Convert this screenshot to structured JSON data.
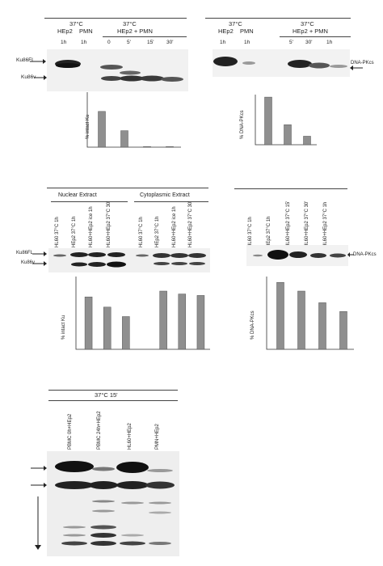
{
  "panelA": {
    "temp": "37°C",
    "cell_hep2": "HEp2",
    "cell_pmn": "PMN",
    "group": "HEp2 + PMN",
    "lanes": [
      "1h",
      "1h",
      "0",
      "5'",
      "15'",
      "30'"
    ],
    "band_top": "Ku86FL",
    "band_bottom": "Ku86v",
    "chart_data": {
      "type": "bar",
      "ylabel": "% intact Ku",
      "values": [
        65,
        30,
        1,
        1
      ],
      "ylim": [
        0,
        100
      ]
    }
  },
  "panelB": {
    "temp": "37°C",
    "cell_hep2": "HEp2",
    "cell_pmn": "PMN",
    "group": "HEp2 + PMN",
    "lanes": [
      "1h",
      "1h",
      "5'",
      "30'",
      "1h"
    ],
    "band_label": "DNA-PKcs",
    "chart_data": {
      "type": "bar",
      "ylabel": "% DNA-PKcs",
      "values": [
        95,
        40,
        17
      ],
      "ylim": [
        0,
        100
      ]
    }
  },
  "panelC": {
    "header_nuclear": "Nuclear Extract",
    "header_cyto": "Cytoplasmic Extract",
    "lanes": [
      "HL60 37°C 1h",
      "HEp2 37°C 1h",
      "HL60+HEp2 ice 1h",
      "HL60+HEp2 37°C 30'",
      "HL60 37°C 1h",
      "HEp2 37°C 1h",
      "HL60+HEp2 ice 1h",
      "HL60+HEp2 37°C 30'"
    ],
    "band_top": "Ku86FL",
    "band_bottom": "Ku86v",
    "chart_data": {
      "type": "bar",
      "ylabel": "% intact Ku",
      "values": [
        72,
        58,
        45,
        0,
        80,
        76,
        74
      ],
      "ylim": [
        0,
        100
      ]
    }
  },
  "panelD": {
    "lanes": [
      "HL60 37°C 1h",
      "HEp2 37°C 1h",
      "HL60+HEp2 37°C 15'",
      "HL60+HEp2 37°C 30'",
      "HL60+HEp2 37°C 1h"
    ],
    "band_label": "DNA-PKcs",
    "chart_data": {
      "type": "bar",
      "ylabel": "% DNA-PKcs",
      "values": [
        92,
        80,
        64,
        52
      ],
      "ylim": [
        0,
        100
      ]
    }
  },
  "panelE": {
    "header": "37°C 15'",
    "lanes": [
      "PBMC 0h+HEp2",
      "PBMC 24h+HEp2",
      "HL60+HEp2",
      "PMN+HEp2"
    ]
  }
}
